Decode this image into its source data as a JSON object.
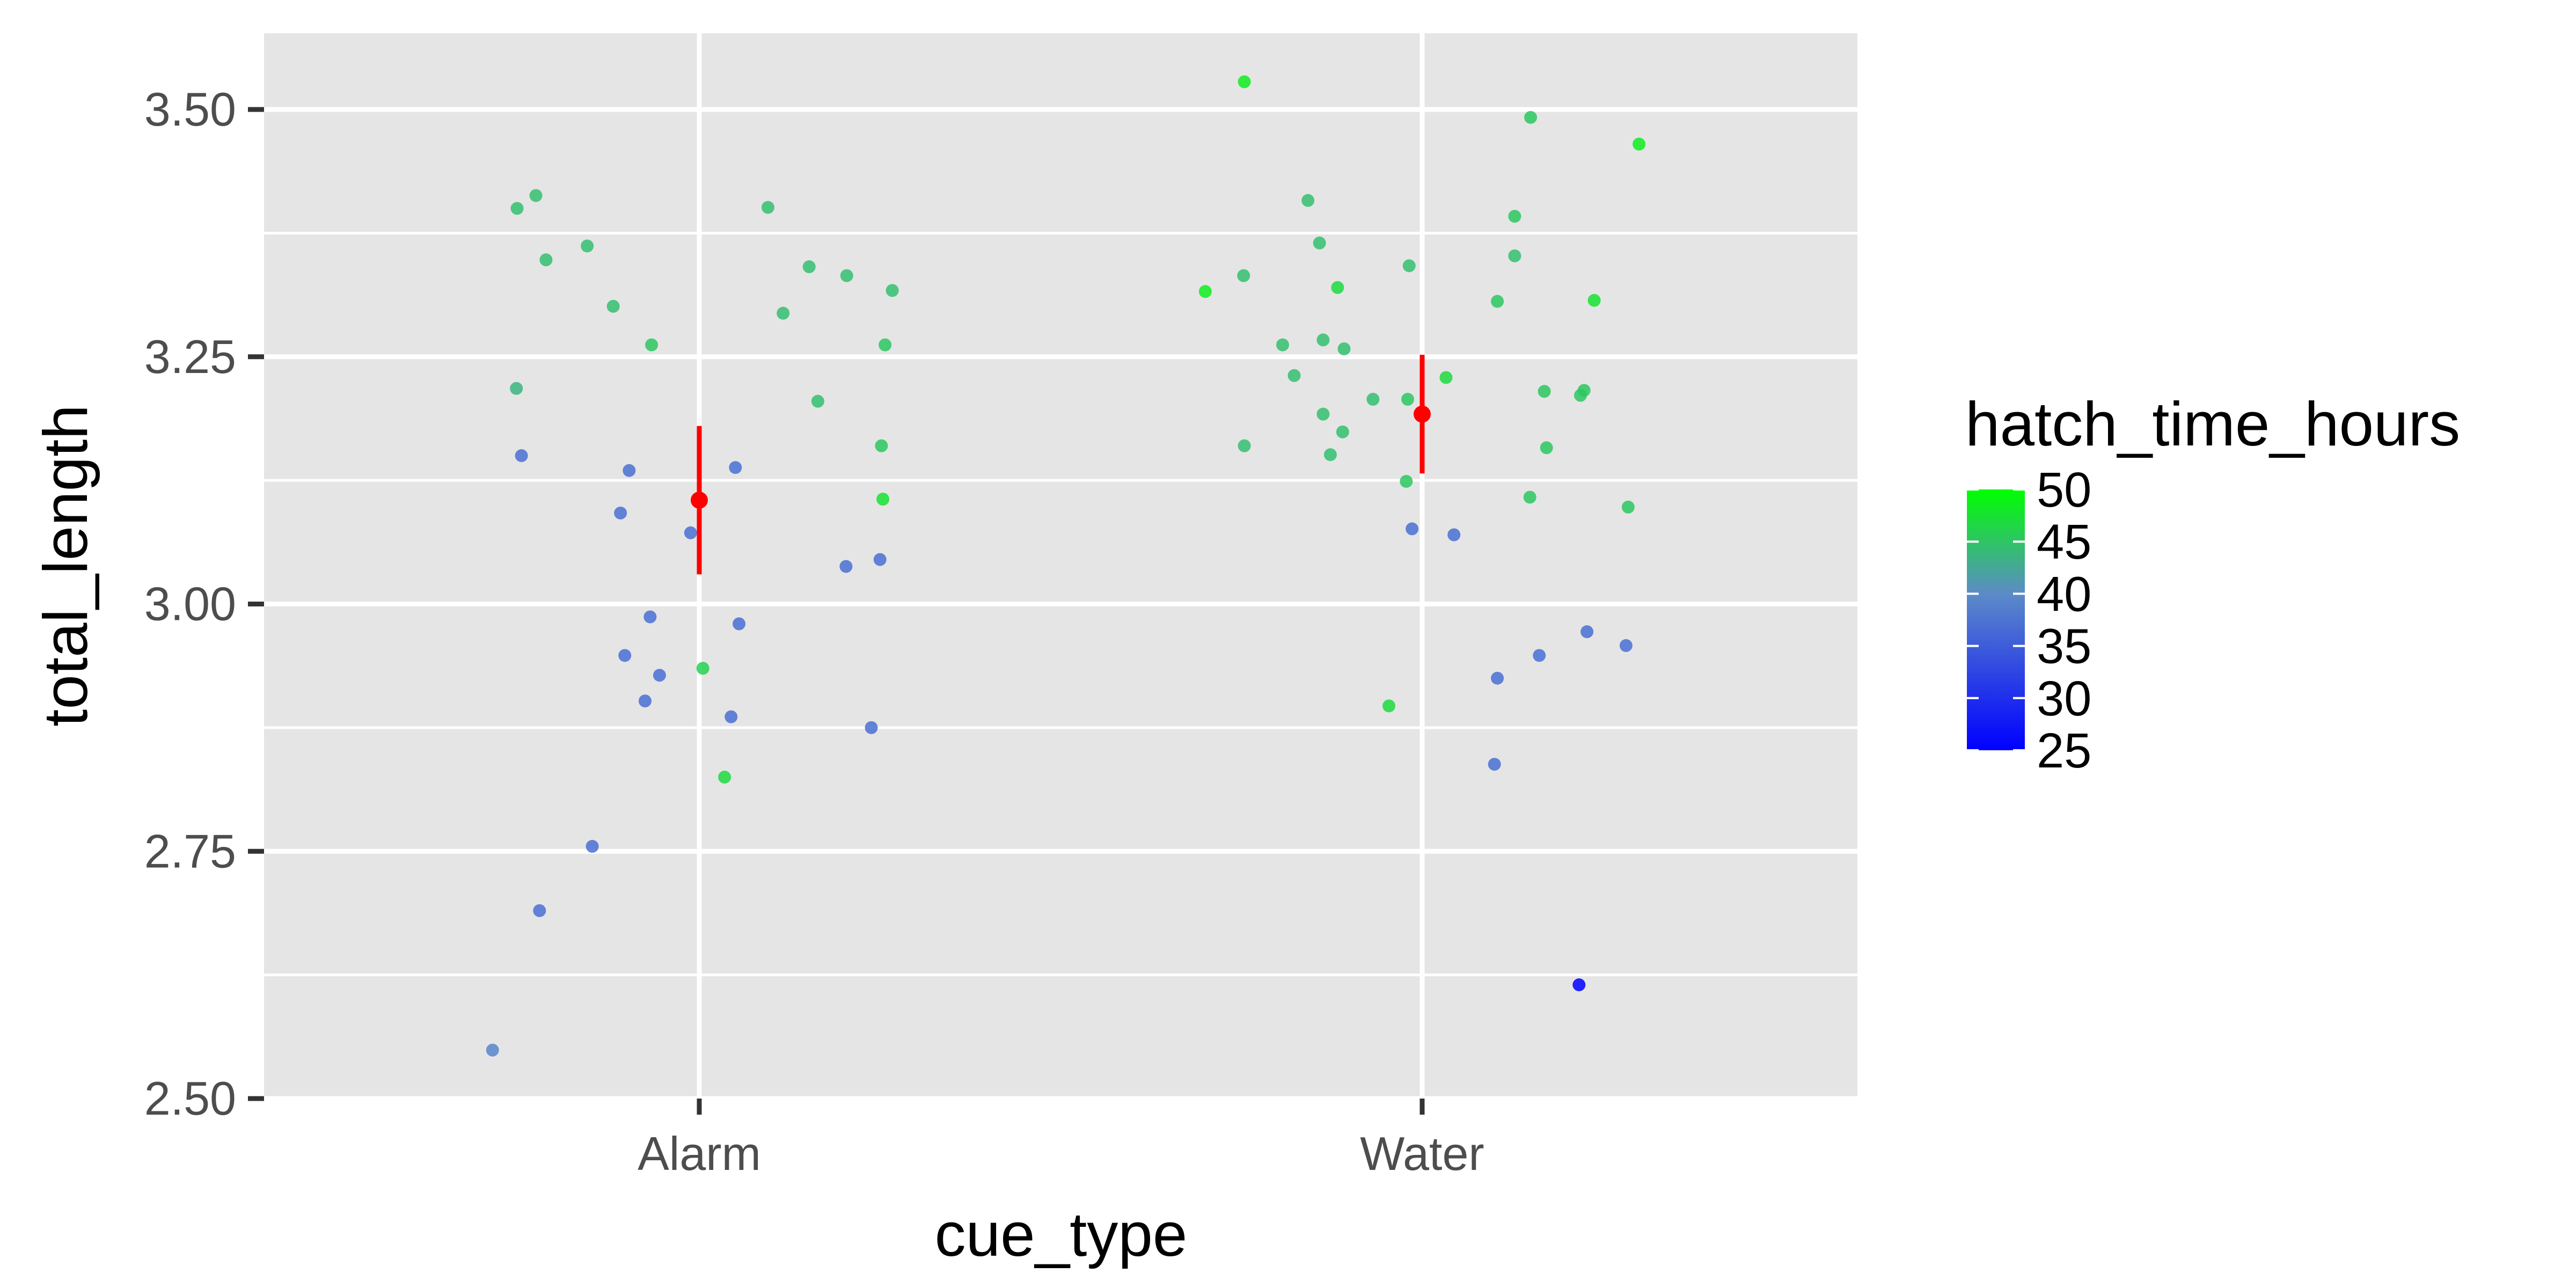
{
  "chart_data": {
    "type": "scatter",
    "title": "",
    "xlabel": "cue_type",
    "ylabel": "total_length",
    "categories": [
      "Alarm",
      "Water"
    ],
    "ylim": [
      2.5,
      3.57
    ],
    "y_ticks": [
      "2.50",
      "2.75",
      "3.00",
      "3.25",
      "3.50"
    ],
    "grid": true,
    "legend": {
      "title": "hatch_time_hours",
      "position": "right",
      "ticks": [
        "25",
        "30",
        "35",
        "40",
        "45",
        "50"
      ],
      "range": [
        25,
        50
      ],
      "color_low": "#0000ff",
      "color_high": "#00ff00"
    },
    "points": [
      {
        "cue": "Alarm",
        "x": -0.286,
        "y": 2.549,
        "c": 37
      },
      {
        "cue": "Alarm",
        "x": -0.253,
        "y": 3.218,
        "c": 42
      },
      {
        "cue": "Alarm",
        "x": -0.252,
        "y": 3.4,
        "c": 43
      },
      {
        "cue": "Alarm",
        "x": -0.246,
        "y": 3.15,
        "c": 35
      },
      {
        "cue": "Alarm",
        "x": -0.226,
        "y": 3.413,
        "c": 43
      },
      {
        "cue": "Alarm",
        "x": -0.221,
        "y": 2.69,
        "c": 35
      },
      {
        "cue": "Alarm",
        "x": -0.212,
        "y": 3.348,
        "c": 43
      },
      {
        "cue": "Alarm",
        "x": -0.155,
        "y": 3.362,
        "c": 43
      },
      {
        "cue": "Alarm",
        "x": -0.148,
        "y": 2.755,
        "c": 35
      },
      {
        "cue": "Alarm",
        "x": -0.119,
        "y": 3.301,
        "c": 43
      },
      {
        "cue": "Alarm",
        "x": -0.109,
        "y": 3.092,
        "c": 35
      },
      {
        "cue": "Alarm",
        "x": -0.103,
        "y": 2.948,
        "c": 35
      },
      {
        "cue": "Alarm",
        "x": -0.097,
        "y": 3.135,
        "c": 35
      },
      {
        "cue": "Alarm",
        "x": -0.075,
        "y": 2.902,
        "c": 35
      },
      {
        "cue": "Alarm",
        "x": -0.068,
        "y": 2.987,
        "c": 35
      },
      {
        "cue": "Alarm",
        "x": -0.066,
        "y": 3.262,
        "c": 44
      },
      {
        "cue": "Alarm",
        "x": -0.055,
        "y": 2.928,
        "c": 35
      },
      {
        "cue": "Alarm",
        "x": -0.012,
        "y": 3.072,
        "c": 35
      },
      {
        "cue": "Alarm",
        "x": 0.005,
        "y": 2.935,
        "c": 45
      },
      {
        "cue": "Alarm",
        "x": 0.035,
        "y": 2.825,
        "c": 46
      },
      {
        "cue": "Alarm",
        "x": 0.044,
        "y": 2.886,
        "c": 35
      },
      {
        "cue": "Alarm",
        "x": 0.05,
        "y": 3.138,
        "c": 35
      },
      {
        "cue": "Alarm",
        "x": 0.055,
        "y": 2.98,
        "c": 35
      },
      {
        "cue": "Alarm",
        "x": 0.095,
        "y": 3.401,
        "c": 43
      },
      {
        "cue": "Alarm",
        "x": 0.116,
        "y": 3.294,
        "c": 43
      },
      {
        "cue": "Alarm",
        "x": 0.152,
        "y": 3.341,
        "c": 43
      },
      {
        "cue": "Alarm",
        "x": 0.164,
        "y": 3.205,
        "c": 43
      },
      {
        "cue": "Alarm",
        "x": 0.203,
        "y": 3.038,
        "c": 35
      },
      {
        "cue": "Alarm",
        "x": 0.204,
        "y": 3.332,
        "c": 43
      },
      {
        "cue": "Alarm",
        "x": 0.238,
        "y": 2.875,
        "c": 35
      },
      {
        "cue": "Alarm",
        "x": 0.25,
        "y": 3.045,
        "c": 35
      },
      {
        "cue": "Alarm",
        "x": 0.252,
        "y": 3.16,
        "c": 44
      },
      {
        "cue": "Alarm",
        "x": 0.254,
        "y": 3.106,
        "c": 47
      },
      {
        "cue": "Alarm",
        "x": 0.257,
        "y": 3.262,
        "c": 44
      },
      {
        "cue": "Alarm",
        "x": 0.267,
        "y": 3.317,
        "c": 43
      },
      {
        "cue": "Water",
        "x": -0.3,
        "y": 3.316,
        "c": 48
      },
      {
        "cue": "Water",
        "x": -0.246,
        "y": 3.16,
        "c": 43
      },
      {
        "cue": "Water",
        "x": -0.247,
        "y": 3.332,
        "c": 43
      },
      {
        "cue": "Water",
        "x": -0.246,
        "y": 3.528,
        "c": 48
      },
      {
        "cue": "Water",
        "x": -0.193,
        "y": 3.262,
        "c": 43
      },
      {
        "cue": "Water",
        "x": -0.177,
        "y": 3.231,
        "c": 43
      },
      {
        "cue": "Water",
        "x": -0.158,
        "y": 3.408,
        "c": 43
      },
      {
        "cue": "Water",
        "x": -0.142,
        "y": 3.365,
        "c": 43
      },
      {
        "cue": "Water",
        "x": -0.137,
        "y": 3.192,
        "c": 43
      },
      {
        "cue": "Water",
        "x": -0.137,
        "y": 3.267,
        "c": 43
      },
      {
        "cue": "Water",
        "x": -0.127,
        "y": 3.151,
        "c": 43
      },
      {
        "cue": "Water",
        "x": -0.117,
        "y": 3.32,
        "c": 46
      },
      {
        "cue": "Water",
        "x": -0.11,
        "y": 3.174,
        "c": 43
      },
      {
        "cue": "Water",
        "x": -0.108,
        "y": 3.258,
        "c": 43
      },
      {
        "cue": "Water",
        "x": -0.068,
        "y": 3.207,
        "c": 43
      },
      {
        "cue": "Water",
        "x": -0.046,
        "y": 2.897,
        "c": 46
      },
      {
        "cue": "Water",
        "x": -0.022,
        "y": 3.124,
        "c": 44
      },
      {
        "cue": "Water",
        "x": -0.02,
        "y": 3.207,
        "c": 44
      },
      {
        "cue": "Water",
        "x": -0.018,
        "y": 3.342,
        "c": 43
      },
      {
        "cue": "Water",
        "x": -0.014,
        "y": 3.076,
        "c": 35
      },
      {
        "cue": "Water",
        "x": 0.033,
        "y": 3.229,
        "c": 46
      },
      {
        "cue": "Water",
        "x": 0.044,
        "y": 3.07,
        "c": 35
      },
      {
        "cue": "Water",
        "x": 0.1,
        "y": 2.838,
        "c": 35
      },
      {
        "cue": "Water",
        "x": 0.104,
        "y": 2.925,
        "c": 35
      },
      {
        "cue": "Water",
        "x": 0.104,
        "y": 3.306,
        "c": 44
      },
      {
        "cue": "Water",
        "x": 0.128,
        "y": 3.392,
        "c": 44
      },
      {
        "cue": "Water",
        "x": 0.128,
        "y": 3.352,
        "c": 43
      },
      {
        "cue": "Water",
        "x": 0.149,
        "y": 3.108,
        "c": 44
      },
      {
        "cue": "Water",
        "x": 0.15,
        "y": 3.492,
        "c": 44
      },
      {
        "cue": "Water",
        "x": 0.162,
        "y": 2.948,
        "c": 35
      },
      {
        "cue": "Water",
        "x": 0.169,
        "y": 3.215,
        "c": 44
      },
      {
        "cue": "Water",
        "x": 0.172,
        "y": 3.158,
        "c": 44
      },
      {
        "cue": "Water",
        "x": 0.217,
        "y": 2.615,
        "c": 25
      },
      {
        "cue": "Water",
        "x": 0.219,
        "y": 3.211,
        "c": 44
      },
      {
        "cue": "Water",
        "x": 0.224,
        "y": 3.216,
        "c": 44
      },
      {
        "cue": "Water",
        "x": 0.228,
        "y": 2.972,
        "c": 35
      },
      {
        "cue": "Water",
        "x": 0.238,
        "y": 3.307,
        "c": 47
      },
      {
        "cue": "Water",
        "x": 0.282,
        "y": 2.958,
        "c": 35
      },
      {
        "cue": "Water",
        "x": 0.285,
        "y": 3.098,
        "c": 44
      },
      {
        "cue": "Water",
        "x": 0.3,
        "y": 3.465,
        "c": 48
      }
    ],
    "summary": [
      {
        "cue": "Alarm",
        "mean": 3.105,
        "lower": 3.03,
        "upper": 3.18,
        "color": "#ff0000"
      },
      {
        "cue": "Water",
        "mean": 3.192,
        "lower": 3.132,
        "upper": 3.252,
        "color": "#ff0000"
      }
    ]
  }
}
